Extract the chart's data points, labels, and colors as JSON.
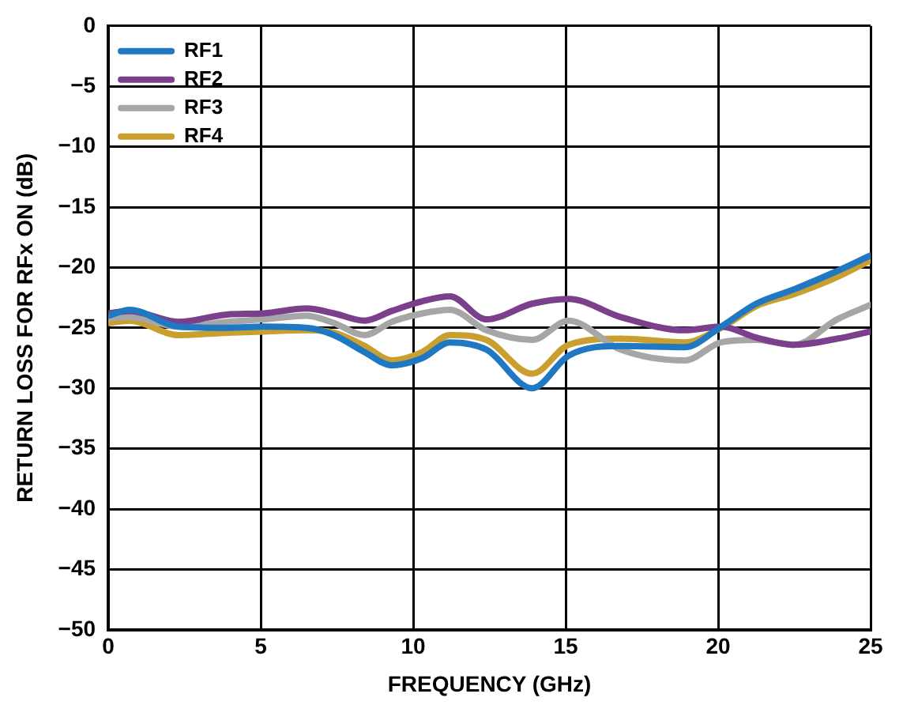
{
  "chart_data": {
    "type": "line",
    "xlabel": "FREQUENCY (GHz)",
    "ylabel": "RETURN LOSS FOR RFx ON (dB)",
    "x": [
      0,
      0.7,
      2.3,
      3.9,
      5.1,
      6.5,
      7.4,
      8.4,
      9.3,
      10.3,
      11.2,
      12.4,
      13.9,
      15.1,
      16.8,
      18.9,
      20.1,
      21.25,
      22.5,
      23.9,
      25
    ],
    "series": [
      {
        "name": "RF1",
        "color": "#1f78c1",
        "values": [
          -24.0,
          -23.5,
          -24.9,
          -25.0,
          -24.9,
          -25.0,
          -25.6,
          -27.0,
          -28.1,
          -27.5,
          -26.2,
          -26.8,
          -30.0,
          -27.3,
          -26.5,
          -26.6,
          -24.9,
          -23.0,
          -21.8,
          -20.3,
          -19.0
        ]
      },
      {
        "name": "RF2",
        "color": "#7b3f8c",
        "values": [
          -23.8,
          -23.6,
          -24.5,
          -23.9,
          -23.8,
          -23.4,
          -23.8,
          -24.4,
          -23.6,
          -22.8,
          -22.4,
          -24.3,
          -23.0,
          -22.6,
          -24.1,
          -25.2,
          -24.9,
          -25.8,
          -26.4,
          -25.9,
          -25.3
        ]
      },
      {
        "name": "RF3",
        "color": "#a6a6a6",
        "values": [
          -24.2,
          -24.1,
          -24.9,
          -24.5,
          -24.3,
          -24.0,
          -24.6,
          -25.6,
          -24.5,
          -23.8,
          -23.5,
          -25.2,
          -26.0,
          -24.4,
          -26.8,
          -27.7,
          -26.2,
          -26.0,
          -26.4,
          -24.3,
          -23.1
        ]
      },
      {
        "name": "RF4",
        "color": "#c9a030",
        "values": [
          -24.6,
          -24.4,
          -25.6,
          -25.4,
          -25.3,
          -25.2,
          -25.4,
          -26.5,
          -27.7,
          -27.0,
          -25.6,
          -26.0,
          -28.8,
          -26.4,
          -25.9,
          -26.2,
          -25.0,
          -23.2,
          -22.2,
          -20.8,
          -19.4
        ]
      }
    ],
    "xlim": [
      0,
      25
    ],
    "xticks": [
      0,
      5,
      10,
      15,
      20,
      25
    ],
    "ylim": [
      -50,
      0
    ],
    "yticks": [
      -50,
      -45,
      -40,
      -35,
      -30,
      -25,
      -20,
      -15,
      -10,
      -5,
      0
    ],
    "grid": true,
    "legend": "top left",
    "marker": "none",
    "line_style": "solid"
  }
}
